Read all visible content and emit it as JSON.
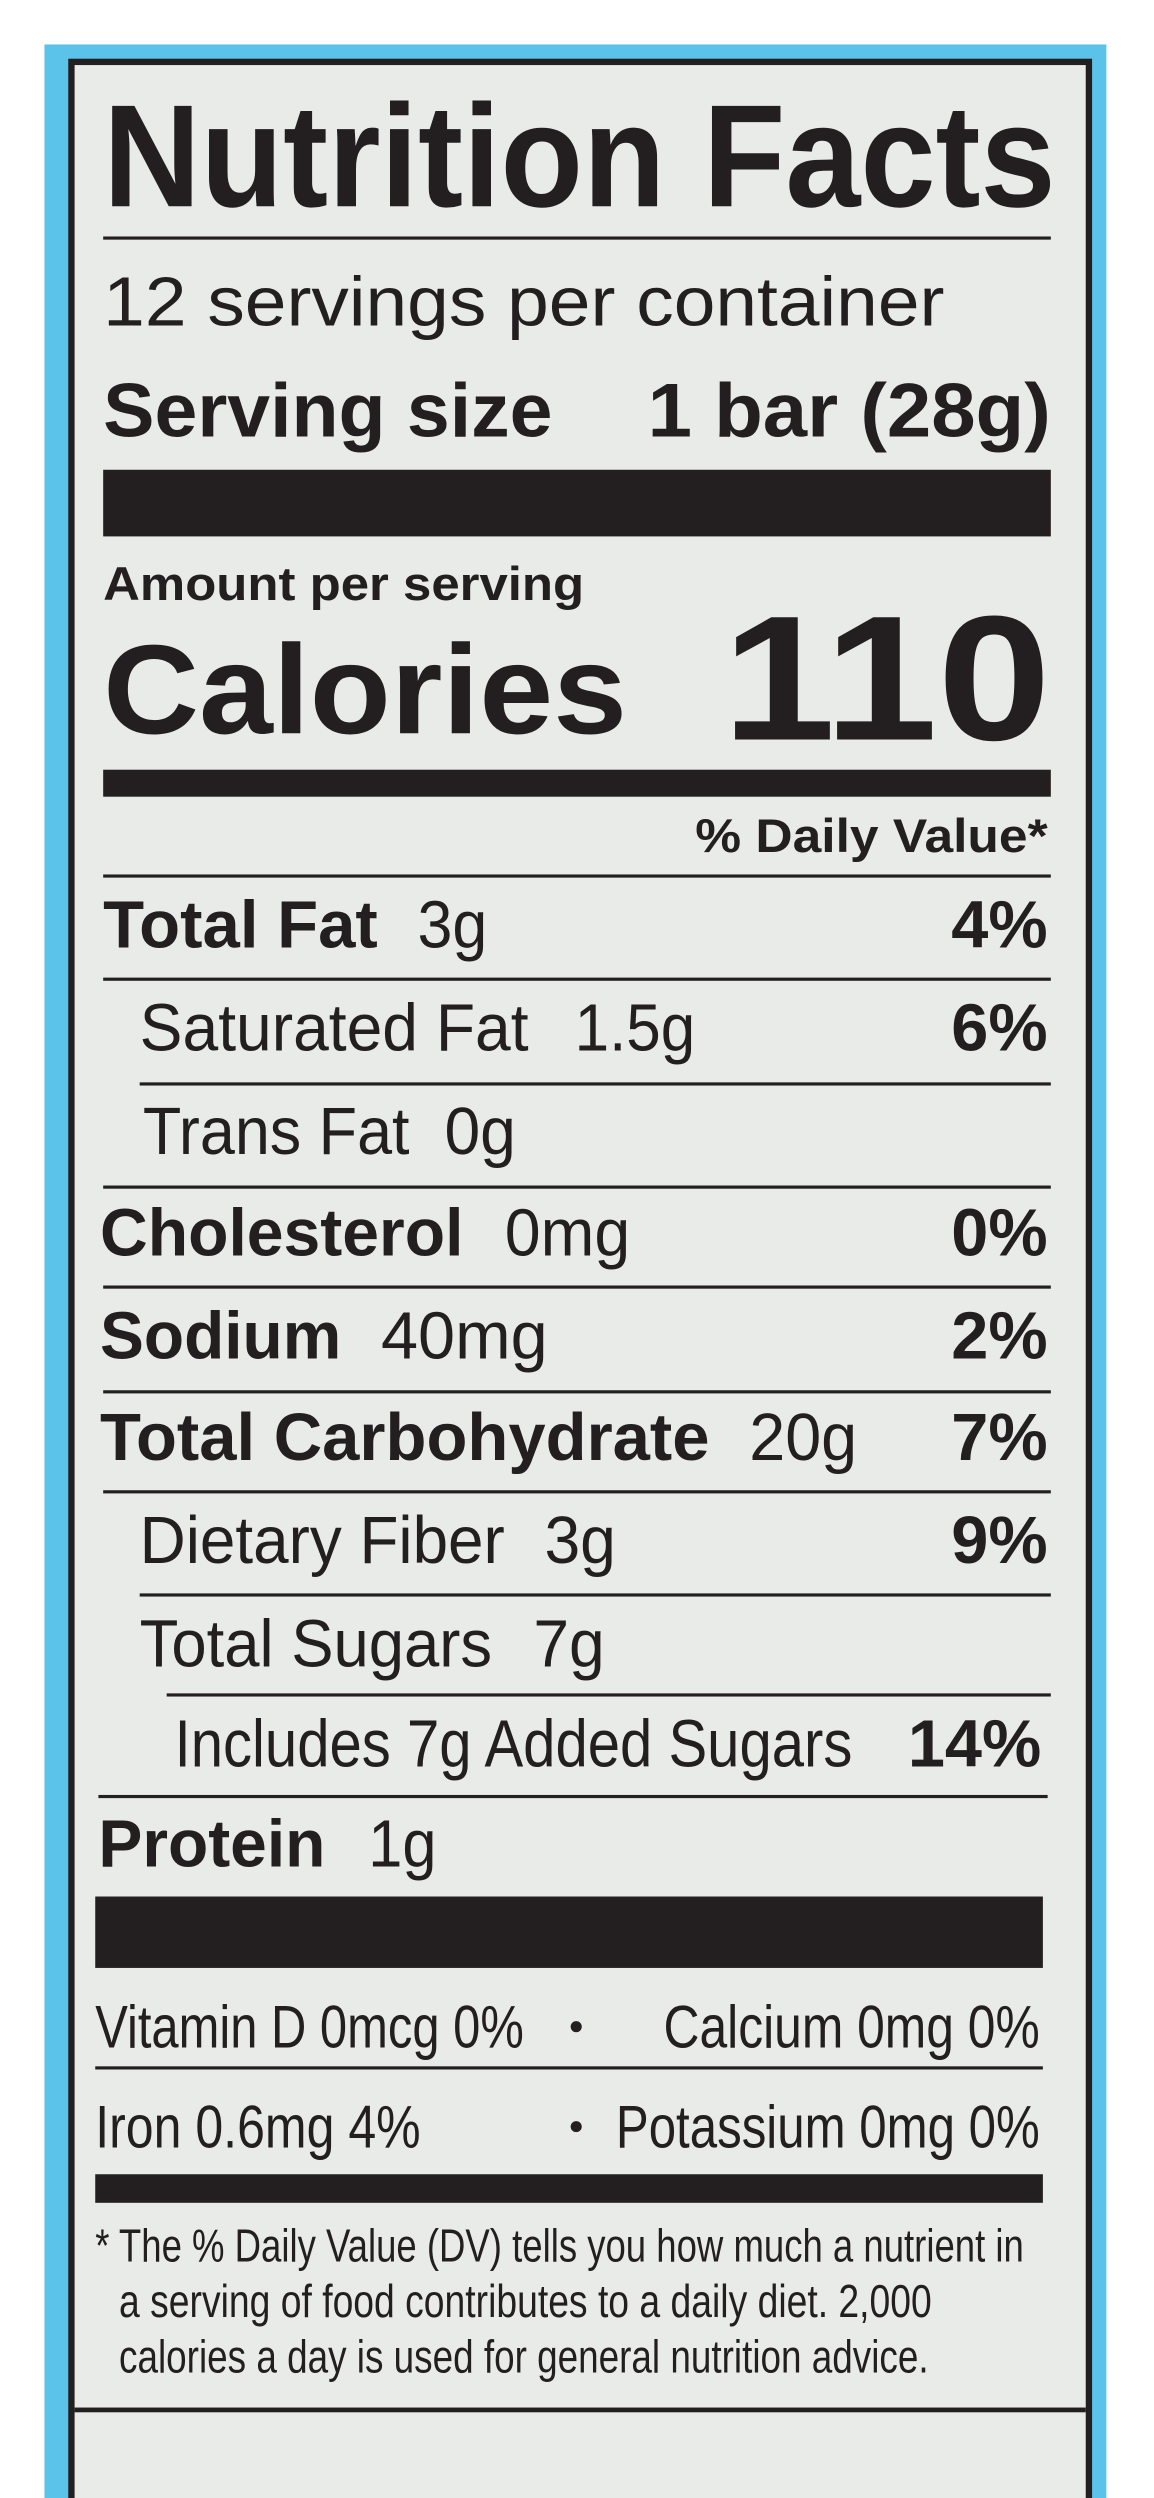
{
  "header": {
    "title": "Nutrition Facts",
    "servings": "12 servings per container",
    "serving_size_label": "Serving size",
    "serving_size_value": "1 bar (28g)"
  },
  "calories": {
    "amount_label": "Amount per serving",
    "label": "Calories",
    "value": "110"
  },
  "daily_value_header": "% Daily Value*",
  "nutrients": [
    {
      "name": "Total Fat",
      "amount": "3g",
      "dv": "4%"
    },
    {
      "name": "Saturated Fat",
      "amount": "1.5g",
      "dv": "6%"
    },
    {
      "name": "Trans Fat",
      "amount": "0g"
    },
    {
      "name": "Cholesterol",
      "amount": "0mg",
      "dv": "0%"
    },
    {
      "name": "Sodium",
      "amount": "40mg",
      "dv": "2%"
    },
    {
      "name": "Total Carbohydrate",
      "amount": "20g",
      "dv": "7%"
    },
    {
      "name": "Dietary Fiber",
      "amount": "3g",
      "dv": "9%"
    },
    {
      "name": "Total Sugars",
      "amount": "7g"
    },
    {
      "name": "Includes 7g Added Sugars",
      "dv": "14%"
    },
    {
      "name": "Protein",
      "amount": "1g"
    }
  ],
  "vitamins": [
    "Vitamin D 0mcg 0%",
    "Calcium 0mg 0%",
    "Iron 0.6mg 4%",
    "Potassium 0mg 0%"
  ],
  "footnote": [
    "* The % Daily Value (DV) tells you how much a nutrient in",
    "a serving of food contributes to a daily diet. 2,000",
    "calories a day is used for general nutrition advice."
  ]
}
